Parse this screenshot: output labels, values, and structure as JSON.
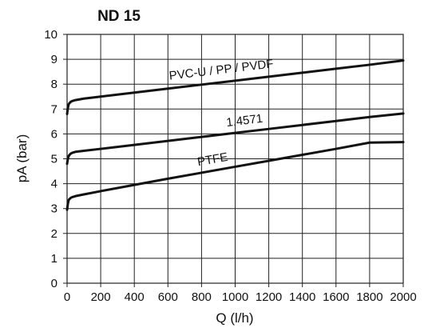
{
  "chart_data": {
    "type": "line",
    "title": "ND 15",
    "xlabel": "Q (l/h)",
    "ylabel": "pA (bar)",
    "xlim": [
      0,
      2000
    ],
    "ylim": [
      0,
      10
    ],
    "x_ticks": [
      0,
      200,
      400,
      600,
      800,
      1000,
      1200,
      1400,
      1600,
      1800,
      2000
    ],
    "y_ticks": [
      0,
      1,
      2,
      3,
      4,
      5,
      6,
      7,
      8,
      9,
      10
    ],
    "grid": true,
    "legend": "none",
    "colors": {
      "line": "#111111",
      "grid": "#222222"
    },
    "series": [
      {
        "name": "PVC-U / PP / PVDF",
        "x": [
          0,
          5,
          10,
          20,
          30,
          50,
          100,
          200,
          400,
          600,
          800,
          1000,
          1200,
          1400,
          1600,
          1800,
          2000
        ],
        "y": [
          6.8,
          7.05,
          7.2,
          7.28,
          7.32,
          7.36,
          7.42,
          7.5,
          7.66,
          7.82,
          7.98,
          8.14,
          8.3,
          8.46,
          8.62,
          8.78,
          8.95
        ]
      },
      {
        "name": "1.4571",
        "x": [
          0,
          5,
          10,
          20,
          30,
          50,
          100,
          200,
          400,
          600,
          800,
          1000,
          1200,
          1400,
          1600,
          1800,
          2000
        ],
        "y": [
          4.8,
          5.0,
          5.12,
          5.2,
          5.24,
          5.28,
          5.32,
          5.4,
          5.56,
          5.72,
          5.88,
          6.04,
          6.2,
          6.36,
          6.52,
          6.68,
          6.82
        ]
      },
      {
        "name": "PTFE",
        "x": [
          0,
          5,
          10,
          20,
          30,
          50,
          100,
          200,
          400,
          600,
          800,
          1000,
          1200,
          1400,
          1600,
          1800,
          2000
        ],
        "y": [
          2.95,
          3.2,
          3.35,
          3.42,
          3.46,
          3.5,
          3.57,
          3.7,
          3.95,
          4.2,
          4.44,
          4.68,
          4.92,
          5.16,
          5.4,
          5.65,
          5.67
        ]
      }
    ],
    "annotations": [
      {
        "text": "PVC-U / PP / PVDF",
        "series": 0,
        "at_x": 610,
        "y_offset": 0.35
      },
      {
        "text": "1.4571",
        "series": 1,
        "at_x": 950,
        "y_offset": 0.3
      },
      {
        "text": "PTFE",
        "series": 2,
        "at_x": 780,
        "y_offset": 0.3
      }
    ]
  }
}
